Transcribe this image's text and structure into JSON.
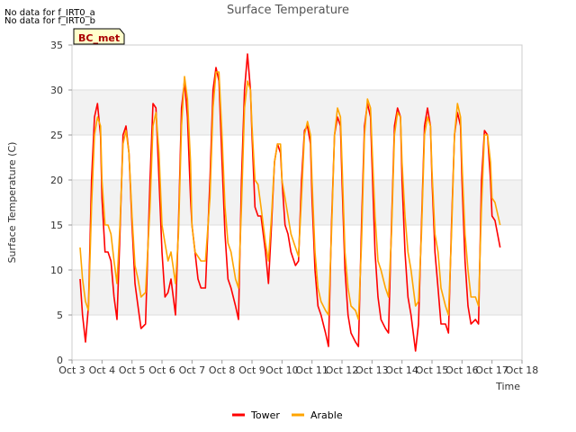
{
  "notes": [
    "No data for f_IRT0_a",
    "No data for f_IRT0_b"
  ],
  "site_badge": "BC_met",
  "colors": {
    "tower": "#ff0000",
    "arable": "#ffa500",
    "band": "#f2f2f2",
    "grid": "#dddddd"
  },
  "chart_data": {
    "type": "line",
    "title": "Surface Temperature",
    "xlabel": "Time",
    "ylabel": "Surface Temperature (C)",
    "xlim": [
      3,
      18
    ],
    "ylim": [
      0,
      35
    ],
    "x_ticks": [
      3,
      4,
      5,
      6,
      7,
      8,
      9,
      10,
      11,
      12,
      13,
      14,
      15,
      16,
      17,
      18
    ],
    "x_tick_labels": [
      "Oct 3",
      "Oct 4",
      "Oct 5",
      "Oct 6",
      "Oct 7",
      "Oct 8",
      "Oct 9",
      "Oct 10",
      "Oct 11",
      "Oct 12",
      "Oct 13",
      "Oct 14",
      "Oct 15",
      "Oct 16",
      "Oct 17",
      "Oct 18"
    ],
    "y_ticks": [
      0,
      5,
      10,
      15,
      20,
      25,
      30,
      35
    ],
    "legend": {
      "position": "bottom-center"
    },
    "series": [
      {
        "name": "Tower",
        "color": "#ff0000",
        "x": [
          3.27,
          3.35,
          3.45,
          3.55,
          3.65,
          3.75,
          3.85,
          3.95,
          4.0,
          4.1,
          4.2,
          4.3,
          4.4,
          4.5,
          4.6,
          4.7,
          4.8,
          4.9,
          5.0,
          5.1,
          5.2,
          5.3,
          5.45,
          5.6,
          5.7,
          5.8,
          5.9,
          6.0,
          6.1,
          6.2,
          6.3,
          6.45,
          6.55,
          6.65,
          6.75,
          6.85,
          6.95,
          7.0,
          7.1,
          7.2,
          7.3,
          7.45,
          7.6,
          7.7,
          7.8,
          7.9,
          8.0,
          8.1,
          8.2,
          8.3,
          8.45,
          8.55,
          8.65,
          8.75,
          8.85,
          8.95,
          9.0,
          9.1,
          9.2,
          9.3,
          9.45,
          9.55,
          9.65,
          9.75,
          9.85,
          9.95,
          10.0,
          10.1,
          10.2,
          10.3,
          10.45,
          10.55,
          10.65,
          10.75,
          10.85,
          10.95,
          11.0,
          11.1,
          11.2,
          11.3,
          11.45,
          11.55,
          11.65,
          11.75,
          11.85,
          11.95,
          12.0,
          12.1,
          12.2,
          12.3,
          12.45,
          12.55,
          12.65,
          12.75,
          12.85,
          12.95,
          13.0,
          13.1,
          13.2,
          13.3,
          13.45,
          13.55,
          13.65,
          13.75,
          13.85,
          13.95,
          14.0,
          14.1,
          14.2,
          14.3,
          14.45,
          14.55,
          14.65,
          14.75,
          14.85,
          14.95,
          15.0,
          15.1,
          15.2,
          15.3,
          15.45,
          15.55,
          15.65,
          15.75,
          15.85,
          15.95,
          16.0,
          16.1,
          16.2,
          16.3,
          16.45,
          16.55,
          16.65,
          16.75,
          16.85,
          16.95,
          17.0,
          17.1,
          17.27
        ],
        "values": [
          9.0,
          5.0,
          2.0,
          6.0,
          20.0,
          27.0,
          28.5,
          25.0,
          18.0,
          12.0,
          12.0,
          11.0,
          7.0,
          4.5,
          14.0,
          25.0,
          26.0,
          23.0,
          15.0,
          8.5,
          6.0,
          3.5,
          4.0,
          20.0,
          28.5,
          28.0,
          20.0,
          12.0,
          7.0,
          7.5,
          9.0,
          5.0,
          15.0,
          28.0,
          31.0,
          27.0,
          18.0,
          15.0,
          12.0,
          9.0,
          8.0,
          8.0,
          20.0,
          30.0,
          32.5,
          31.0,
          22.0,
          14.0,
          9.0,
          8.0,
          6.0,
          4.5,
          20.0,
          30.0,
          34.0,
          30.0,
          25.0,
          17.0,
          16.0,
          16.0,
          12.0,
          8.5,
          15.0,
          22.0,
          24.0,
          23.0,
          20.0,
          15.0,
          14.0,
          12.0,
          10.5,
          11.0,
          20.0,
          25.5,
          26.0,
          24.0,
          18.0,
          10.0,
          6.0,
          5.0,
          3.0,
          1.5,
          15.0,
          25.0,
          27.0,
          26.0,
          20.0,
          10.0,
          5.0,
          3.0,
          2.0,
          1.5,
          15.0,
          26.0,
          28.5,
          27.0,
          22.0,
          12.0,
          7.0,
          4.5,
          3.5,
          3.0,
          15.0,
          26.0,
          28.0,
          27.0,
          20.0,
          12.0,
          7.0,
          5.0,
          1.0,
          4.0,
          15.0,
          26.0,
          28.0,
          26.0,
          20.0,
          12.0,
          8.0,
          4.0,
          4.0,
          3.0,
          15.0,
          25.0,
          27.5,
          26.0,
          20.0,
          11.0,
          6.0,
          4.0,
          4.5,
          4.0,
          20.0,
          25.5,
          25.0,
          20.0,
          16.0,
          15.5,
          12.5
        ]
      },
      {
        "name": "Arable",
        "color": "#ffa500",
        "x": [
          3.27,
          3.35,
          3.45,
          3.55,
          3.65,
          3.75,
          3.85,
          3.95,
          4.0,
          4.1,
          4.2,
          4.3,
          4.4,
          4.5,
          4.6,
          4.7,
          4.8,
          4.9,
          5.0,
          5.1,
          5.2,
          5.3,
          5.45,
          5.6,
          5.7,
          5.8,
          5.9,
          6.0,
          6.1,
          6.2,
          6.3,
          6.45,
          6.55,
          6.65,
          6.75,
          6.85,
          6.95,
          7.0,
          7.1,
          7.2,
          7.3,
          7.45,
          7.6,
          7.7,
          7.8,
          7.9,
          8.0,
          8.1,
          8.2,
          8.3,
          8.45,
          8.55,
          8.65,
          8.75,
          8.85,
          8.95,
          9.0,
          9.1,
          9.2,
          9.3,
          9.45,
          9.55,
          9.65,
          9.75,
          9.85,
          9.95,
          10.0,
          10.1,
          10.2,
          10.3,
          10.45,
          10.55,
          10.65,
          10.75,
          10.85,
          10.95,
          11.0,
          11.1,
          11.2,
          11.3,
          11.45,
          11.55,
          11.65,
          11.75,
          11.85,
          11.95,
          12.0,
          12.1,
          12.2,
          12.3,
          12.45,
          12.55,
          12.65,
          12.75,
          12.85,
          12.95,
          13.0,
          13.1,
          13.2,
          13.3,
          13.45,
          13.55,
          13.65,
          13.75,
          13.85,
          13.95,
          14.0,
          14.1,
          14.2,
          14.3,
          14.45,
          14.55,
          14.65,
          14.75,
          14.85,
          14.95,
          15.0,
          15.1,
          15.2,
          15.3,
          15.45,
          15.55,
          15.65,
          15.75,
          15.85,
          15.95,
          16.0,
          16.1,
          16.2,
          16.3,
          16.45,
          16.55,
          16.65,
          16.75,
          16.85,
          16.95,
          17.0,
          17.1,
          17.27
        ],
        "values": [
          12.5,
          9.0,
          6.5,
          5.5,
          17.0,
          25.0,
          27.0,
          26.0,
          20.0,
          15.0,
          15.0,
          14.0,
          11.0,
          8.5,
          15.0,
          24.0,
          25.5,
          23.0,
          16.0,
          10.5,
          9.0,
          7.0,
          7.5,
          17.0,
          26.0,
          27.5,
          23.0,
          15.0,
          13.0,
          11.0,
          12.0,
          8.5,
          14.0,
          26.0,
          31.5,
          29.0,
          22.0,
          15.0,
          12.0,
          11.5,
          11.0,
          11.0,
          18.0,
          28.0,
          32.0,
          32.0,
          25.0,
          17.0,
          13.0,
          12.0,
          9.0,
          8.0,
          17.0,
          28.0,
          31.0,
          30.0,
          26.0,
          20.0,
          19.5,
          17.0,
          13.0,
          11.0,
          16.0,
          22.0,
          24.0,
          24.0,
          20.0,
          18.0,
          16.0,
          14.0,
          12.5,
          11.5,
          18.0,
          25.0,
          26.5,
          25.0,
          20.0,
          12.0,
          8.0,
          6.5,
          5.5,
          5.0,
          14.0,
          25.0,
          28.0,
          27.0,
          22.0,
          12.0,
          8.0,
          6.0,
          5.5,
          4.5,
          13.0,
          25.0,
          29.0,
          28.0,
          24.0,
          16.0,
          11.0,
          10.0,
          8.0,
          7.0,
          14.0,
          25.0,
          27.5,
          27.0,
          22.0,
          16.0,
          12.0,
          10.0,
          6.0,
          6.5,
          14.0,
          25.0,
          27.0,
          26.0,
          21.0,
          14.0,
          12.0,
          8.0,
          6.0,
          5.0,
          14.0,
          25.0,
          28.5,
          27.0,
          22.0,
          14.0,
          10.0,
          7.0,
          7.0,
          6.0,
          17.0,
          25.0,
          25.0,
          22.0,
          18.0,
          17.5,
          15.0
        ]
      }
    ]
  }
}
